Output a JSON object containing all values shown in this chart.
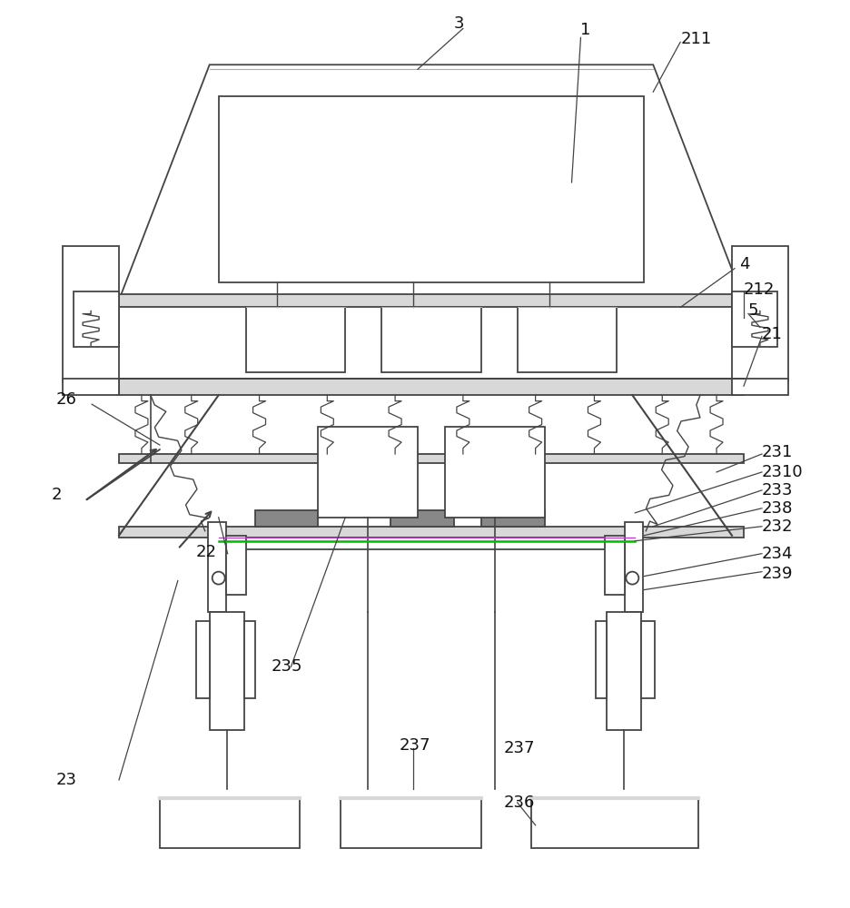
{
  "bg_color": "#ffffff",
  "lc": "#444444",
  "gray_fill": "#d8d8d8",
  "light_fill": "#f4f4f4",
  "green_line": "#00bb00",
  "purple_line": "#bb44cc"
}
